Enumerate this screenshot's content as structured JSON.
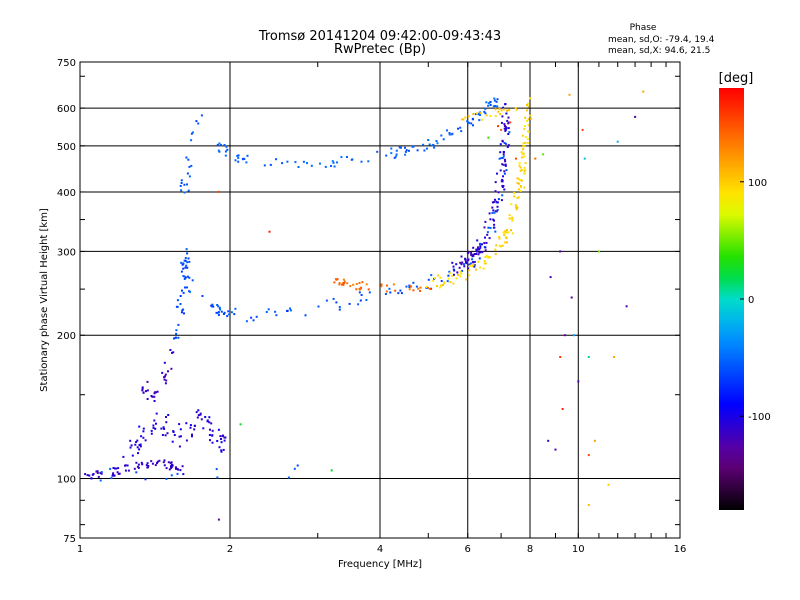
{
  "chart_data": {
    "type": "scatter",
    "title": "Tromsø 20141204 09:42:00-09:43:43",
    "subtitle": "RwPretec (Bp)",
    "xlabel": "Frequency [MHz]",
    "ylabel": "Stationary phase Virtual Height [km]",
    "x_scale": "log",
    "y_scale": "log",
    "xlim": [
      1,
      16
    ],
    "ylim": [
      75,
      750
    ],
    "x_ticks": [
      1,
      2,
      4,
      6,
      8,
      10,
      16
    ],
    "x_tick_labels": [
      "1",
      "2",
      "4",
      "6",
      "8",
      "10",
      "16"
    ],
    "y_ticks": [
      75,
      100,
      200,
      300,
      400,
      500,
      600,
      750
    ],
    "y_tick_labels": [
      "75",
      "100",
      "200",
      "300",
      "400",
      "500",
      "600",
      "750"
    ],
    "grid": true,
    "colorbar": {
      "label": "[deg]",
      "range": [
        -180,
        180
      ],
      "ticks": [
        100,
        0,
        -100
      ],
      "tick_labels": [
        "100",
        "0",
        "-100"
      ]
    },
    "stats_header": "Phase",
    "stats_lines": [
      "mean, sd,O: -79.4, 19.4",
      "mean, sd,X:  94.6, 21.5"
    ],
    "series": [
      {
        "kind": "curve",
        "phase": -110,
        "scatter": 0.02,
        "n": 70,
        "points": [
          [
            1.03,
            101
          ],
          [
            1.1,
            102
          ],
          [
            1.2,
            104
          ],
          [
            1.3,
            106
          ],
          [
            1.4,
            108
          ],
          [
            1.5,
            107
          ],
          [
            1.6,
            104
          ]
        ]
      },
      {
        "kind": "curve",
        "phase": -105,
        "scatter": 0.05,
        "n": 90,
        "points": [
          [
            1.25,
            112
          ],
          [
            1.35,
            125
          ],
          [
            1.45,
            133
          ],
          [
            1.55,
            120
          ],
          [
            1.65,
            128
          ],
          [
            1.75,
            135
          ],
          [
            1.85,
            125
          ],
          [
            1.95,
            115
          ]
        ]
      },
      {
        "kind": "curve",
        "phase": -112,
        "scatter": 0.03,
        "n": 30,
        "points": [
          [
            1.3,
            160
          ],
          [
            1.35,
            155
          ],
          [
            1.4,
            148
          ],
          [
            1.45,
            155
          ],
          [
            1.5,
            170
          ],
          [
            1.55,
            190
          ]
        ]
      },
      {
        "kind": "curve",
        "phase": -65,
        "scatter": 0.03,
        "n": 30,
        "points": [
          [
            1.55,
            180
          ],
          [
            1.58,
            210
          ],
          [
            1.6,
            240
          ],
          [
            1.62,
            270
          ],
          [
            1.65,
            300
          ]
        ]
      },
      {
        "kind": "curve",
        "phase": -60,
        "scatter": 0.03,
        "n": 120,
        "points": [
          [
            1.6,
            310
          ],
          [
            1.62,
            280
          ],
          [
            1.65,
            260
          ],
          [
            1.7,
            245
          ],
          [
            1.8,
            232
          ],
          [
            1.9,
            225
          ],
          [
            2.0,
            222
          ],
          [
            2.2,
            220
          ],
          [
            2.5,
            222
          ],
          [
            3.0,
            228
          ],
          [
            3.5,
            236
          ],
          [
            4.0,
            244
          ],
          [
            4.5,
            250
          ],
          [
            5.0,
            258
          ],
          [
            5.5,
            266
          ],
          [
            6.0,
            280
          ],
          [
            6.3,
            295
          ],
          [
            6.6,
            320
          ],
          [
            6.8,
            360
          ],
          [
            7.0,
            420
          ],
          [
            7.1,
            480
          ],
          [
            7.2,
            540
          ]
        ]
      },
      {
        "kind": "curve",
        "phase": -55,
        "scatter": 0.025,
        "n": 110,
        "points": [
          [
            1.9,
            500
          ],
          [
            2.0,
            480
          ],
          [
            2.2,
            465
          ],
          [
            2.5,
            460
          ],
          [
            3.0,
            455
          ],
          [
            3.5,
            465
          ],
          [
            4.0,
            475
          ],
          [
            4.5,
            490
          ],
          [
            5.0,
            505
          ],
          [
            5.5,
            525
          ],
          [
            6.0,
            550
          ],
          [
            6.3,
            575
          ],
          [
            6.6,
            610
          ],
          [
            7.0,
            620
          ]
        ]
      },
      {
        "kind": "curve",
        "phase": -58,
        "scatter": 0.04,
        "n": 20,
        "points": [
          [
            1.6,
            380
          ],
          [
            1.62,
            420
          ],
          [
            1.65,
            450
          ],
          [
            1.7,
            520
          ],
          [
            1.72,
            570
          ]
        ]
      },
      {
        "kind": "curve",
        "phase": -110,
        "scatter": 0.035,
        "n": 120,
        "points": [
          [
            5.5,
            270
          ],
          [
            6.0,
            285
          ],
          [
            6.3,
            300
          ],
          [
            6.6,
            330
          ],
          [
            6.8,
            370
          ],
          [
            7.0,
            430
          ],
          [
            7.1,
            500
          ],
          [
            7.15,
            560
          ],
          [
            7.2,
            600
          ]
        ]
      },
      {
        "kind": "curve",
        "phase": 95,
        "scatter": 0.03,
        "n": 130,
        "points": [
          [
            5.0,
            255
          ],
          [
            5.5,
            262
          ],
          [
            6.0,
            272
          ],
          [
            6.5,
            288
          ],
          [
            7.0,
            310
          ],
          [
            7.3,
            340
          ],
          [
            7.5,
            380
          ],
          [
            7.7,
            430
          ],
          [
            7.8,
            490
          ],
          [
            7.9,
            550
          ],
          [
            7.9,
            620
          ]
        ]
      },
      {
        "kind": "curve",
        "phase": 140,
        "scatter": 0.02,
        "n": 40,
        "points": [
          [
            3.2,
            262
          ],
          [
            3.5,
            255
          ],
          [
            4.0,
            252
          ],
          [
            4.5,
            250
          ],
          [
            5.0,
            252
          ]
        ]
      },
      {
        "kind": "curve",
        "phase": 100,
        "scatter": 0.02,
        "n": 22,
        "points": [
          [
            5.8,
            565
          ],
          [
            6.2,
            575
          ],
          [
            6.6,
            580
          ],
          [
            7.0,
            590
          ],
          [
            7.5,
            600
          ]
        ]
      },
      {
        "kind": "curve",
        "phase": -60,
        "scatter": 0.04,
        "n": 14,
        "points": [
          [
            1.05,
            101
          ],
          [
            1.5,
            103
          ],
          [
            2.0,
            103
          ],
          [
            2.5,
            104
          ],
          [
            3.0,
            104
          ]
        ]
      },
      {
        "kind": "points",
        "phase": 150,
        "points": [
          [
            7.3,
            560
          ],
          [
            7.0,
            540
          ],
          [
            6.9,
            550
          ],
          [
            8.2,
            470
          ],
          [
            7.5,
            470
          ]
        ]
      },
      {
        "kind": "points",
        "phase": 20,
        "points": [
          [
            10.5,
            180
          ],
          [
            3.2,
            104
          ],
          [
            2.1,
            130
          ]
        ]
      },
      {
        "kind": "points",
        "phase": 110,
        "points": [
          [
            11.5,
            97
          ],
          [
            10.5,
            88
          ],
          [
            10.8,
            120
          ],
          [
            11.8,
            180
          ],
          [
            13.5,
            650
          ],
          [
            9.6,
            640
          ]
        ]
      },
      {
        "kind": "points",
        "phase": 160,
        "points": [
          [
            10.5,
            112
          ],
          [
            10.2,
            540
          ],
          [
            9.2,
            180
          ],
          [
            9.3,
            140
          ],
          [
            2.4,
            330
          ],
          [
            1.9,
            400
          ]
        ]
      },
      {
        "kind": "points",
        "phase": -120,
        "points": [
          [
            12.5,
            230
          ],
          [
            9.7,
            240
          ],
          [
            8.8,
            265
          ],
          [
            8.7,
            120
          ],
          [
            9.0,
            115
          ],
          [
            9.2,
            300
          ],
          [
            9.4,
            200
          ],
          [
            10.0,
            160
          ],
          [
            13.0,
            575
          ],
          [
            1.9,
            82
          ]
        ]
      },
      {
        "kind": "points",
        "phase": 40,
        "points": [
          [
            8.5,
            480
          ],
          [
            11.0,
            300
          ],
          [
            6.6,
            520
          ]
        ]
      },
      {
        "kind": "points",
        "phase": -20,
        "points": [
          [
            12.0,
            510
          ],
          [
            9.8,
            200
          ],
          [
            10.3,
            470
          ]
        ]
      }
    ]
  }
}
